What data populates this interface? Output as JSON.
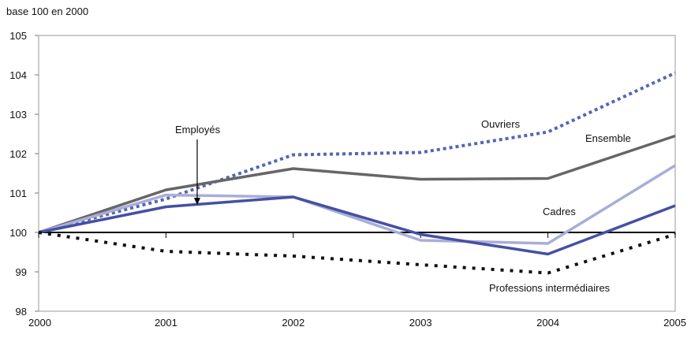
{
  "chart_data": {
    "type": "line",
    "unit_note": "base 100 en 2000",
    "x": [
      "2000",
      "2001",
      "2002",
      "2003",
      "2004",
      "2005"
    ],
    "ylim": [
      98,
      105
    ],
    "yticks": [
      "98",
      "99",
      "100",
      "101",
      "102",
      "103",
      "104",
      "105"
    ],
    "series": [
      {
        "name": "Ouvriers",
        "values": [
          100,
          100.85,
          101.97,
          102.03,
          102.55,
          104.05
        ],
        "color": "#5565b5",
        "style": "dotted"
      },
      {
        "name": "Ensemble",
        "values": [
          100,
          101.08,
          101.62,
          101.35,
          101.37,
          102.45
        ],
        "color": "#666666",
        "style": "solid"
      },
      {
        "name": "Employés",
        "values": [
          100,
          100.95,
          100.9,
          99.8,
          99.72,
          101.7
        ],
        "color": "#a9add8",
        "style": "solid"
      },
      {
        "name": "Cadres",
        "values": [
          100,
          100.65,
          100.9,
          99.95,
          99.45,
          100.68
        ],
        "color": "#4550a3",
        "style": "solid"
      },
      {
        "name": "Professions intermédiaires",
        "values": [
          100,
          99.52,
          99.4,
          99.18,
          98.97,
          99.95
        ],
        "color": "#111111",
        "style": "dotted"
      }
    ],
    "annotations": [
      {
        "text": "Employés",
        "arrow": true
      },
      {
        "text": "Ouvriers"
      },
      {
        "text": "Ensemble"
      },
      {
        "text": "Cadres"
      },
      {
        "text": "Professions intermédiaires"
      }
    ],
    "grid": false,
    "legend": "none"
  }
}
